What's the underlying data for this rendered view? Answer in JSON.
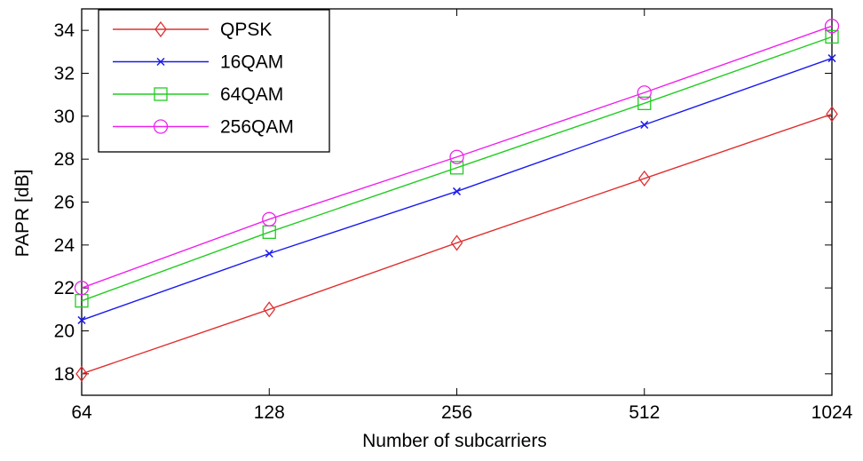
{
  "chart_data": {
    "type": "line",
    "title": "",
    "xlabel": "Number of subcarriers",
    "ylabel": "PAPR [dB]",
    "categories": [
      "64",
      "128",
      "256",
      "512",
      "1024"
    ],
    "x": [
      64,
      128,
      256,
      512,
      1024
    ],
    "x_scale": "log2",
    "ylim": [
      17,
      35
    ],
    "yticks": [
      18,
      20,
      22,
      24,
      26,
      28,
      30,
      32,
      34
    ],
    "grid": false,
    "legend_position": "top-left",
    "series": [
      {
        "name": "QPSK",
        "color": "#e03030",
        "marker": "diamond",
        "values": [
          18.0,
          21.0,
          24.1,
          27.1,
          30.1
        ]
      },
      {
        "name": "16QAM",
        "color": "#1a1aee",
        "marker": "x",
        "values": [
          20.5,
          23.6,
          26.5,
          29.6,
          32.7
        ]
      },
      {
        "name": "64QAM",
        "color": "#22cc22",
        "marker": "square",
        "values": [
          21.4,
          24.6,
          27.6,
          30.6,
          33.7
        ]
      },
      {
        "name": "256QAM",
        "color": "#ee22ee",
        "marker": "circle",
        "values": [
          22.0,
          25.2,
          28.1,
          31.1,
          34.2
        ]
      }
    ]
  }
}
